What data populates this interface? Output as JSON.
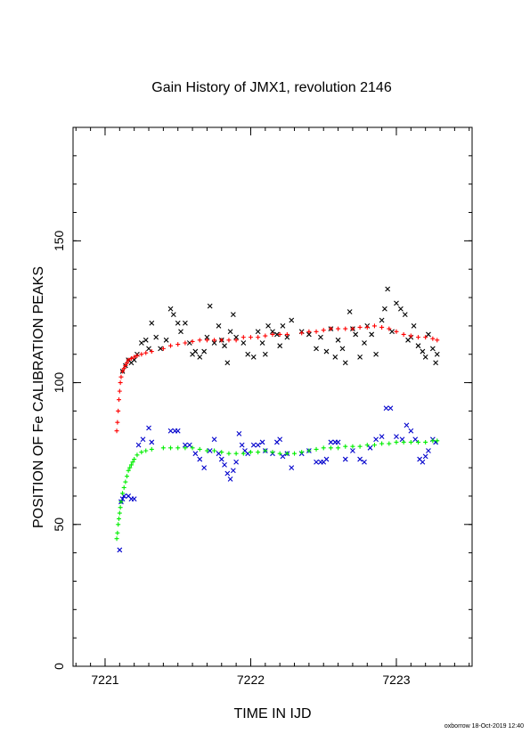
{
  "chart_data": {
    "type": "scatter",
    "title": "Gain History of JMX1, revolution 2146",
    "xlabel": "TIME IN IJD",
    "ylabel": "POSITION OF Fe CALIBRATION PEAKS",
    "xlim": [
      7220.78,
      7223.52
    ],
    "ylim": [
      0,
      190
    ],
    "x_ticks": [
      "7221",
      "7222",
      "7223"
    ],
    "y_ticks": [
      "0",
      "50",
      "100",
      "150"
    ],
    "grid": false,
    "legend": "none",
    "footer": "oxborrow 18-Oct-2019 12:40",
    "series": [
      {
        "marker": "cross",
        "color": "#000000",
        "points": [
          [
            7221.12,
            104
          ],
          [
            7221.14,
            106
          ],
          [
            7221.16,
            108
          ],
          [
            7221.18,
            107
          ],
          [
            7221.2,
            108
          ],
          [
            7221.22,
            110
          ],
          [
            7221.25,
            114
          ],
          [
            7221.28,
            115
          ],
          [
            7221.3,
            112
          ],
          [
            7221.32,
            121
          ],
          [
            7221.35,
            116
          ],
          [
            7221.38,
            112
          ],
          [
            7221.42,
            115
          ],
          [
            7221.45,
            126
          ],
          [
            7221.47,
            124
          ],
          [
            7221.5,
            121
          ],
          [
            7221.52,
            118
          ],
          [
            7221.55,
            121
          ],
          [
            7221.58,
            114
          ],
          [
            7221.6,
            110
          ],
          [
            7221.62,
            111
          ],
          [
            7221.65,
            109
          ],
          [
            7221.68,
            111
          ],
          [
            7221.7,
            116
          ],
          [
            7221.72,
            127
          ],
          [
            7221.75,
            114
          ],
          [
            7221.78,
            120
          ],
          [
            7221.8,
            115
          ],
          [
            7221.82,
            113
          ],
          [
            7221.84,
            107
          ],
          [
            7221.86,
            118
          ],
          [
            7221.88,
            124
          ],
          [
            7221.9,
            116
          ],
          [
            7221.95,
            114
          ],
          [
            7221.98,
            110
          ],
          [
            7222.02,
            109
          ],
          [
            7222.05,
            118
          ],
          [
            7222.08,
            114
          ],
          [
            7222.1,
            110
          ],
          [
            7222.12,
            120
          ],
          [
            7222.15,
            118
          ],
          [
            7222.18,
            117
          ],
          [
            7222.2,
            113
          ],
          [
            7222.22,
            120
          ],
          [
            7222.25,
            116
          ],
          [
            7222.28,
            122
          ],
          [
            7222.35,
            118
          ],
          [
            7222.4,
            117
          ],
          [
            7222.45,
            112
          ],
          [
            7222.48,
            116
          ],
          [
            7222.52,
            111
          ],
          [
            7222.55,
            119
          ],
          [
            7222.58,
            109
          ],
          [
            7222.6,
            115
          ],
          [
            7222.63,
            112
          ],
          [
            7222.65,
            107
          ],
          [
            7222.68,
            125
          ],
          [
            7222.7,
            119
          ],
          [
            7222.72,
            117
          ],
          [
            7222.75,
            109
          ],
          [
            7222.78,
            114
          ],
          [
            7222.8,
            120
          ],
          [
            7222.83,
            117
          ],
          [
            7222.86,
            110
          ],
          [
            7222.9,
            122
          ],
          [
            7222.92,
            126
          ],
          [
            7222.94,
            133
          ],
          [
            7222.97,
            118
          ],
          [
            7223.0,
            128
          ],
          [
            7223.03,
            126
          ],
          [
            7223.06,
            124
          ],
          [
            7223.08,
            115
          ],
          [
            7223.1,
            116
          ],
          [
            7223.12,
            120
          ],
          [
            7223.15,
            113
          ],
          [
            7223.18,
            111
          ],
          [
            7223.2,
            109
          ],
          [
            7223.22,
            117
          ],
          [
            7223.25,
            112
          ],
          [
            7223.27,
            107
          ],
          [
            7223.28,
            110
          ]
        ]
      },
      {
        "marker": "plus",
        "color": "#ff0000",
        "points": [
          [
            7221.08,
            83
          ],
          [
            7221.085,
            86
          ],
          [
            7221.09,
            90
          ],
          [
            7221.095,
            94
          ],
          [
            7221.1,
            97
          ],
          [
            7221.105,
            100
          ],
          [
            7221.11,
            102
          ],
          [
            7221.12,
            104
          ],
          [
            7221.13,
            105
          ],
          [
            7221.14,
            106
          ],
          [
            7221.15,
            107
          ],
          [
            7221.16,
            108
          ],
          [
            7221.18,
            108.5
          ],
          [
            7221.2,
            109
          ],
          [
            7221.22,
            109.5
          ],
          [
            7221.25,
            110
          ],
          [
            7221.28,
            110.5
          ],
          [
            7221.32,
            111
          ],
          [
            7221.4,
            112
          ],
          [
            7221.45,
            113
          ],
          [
            7221.5,
            113.5
          ],
          [
            7221.55,
            114
          ],
          [
            7221.6,
            114.5
          ],
          [
            7221.65,
            115
          ],
          [
            7221.7,
            115
          ],
          [
            7221.75,
            115
          ],
          [
            7221.8,
            115
          ],
          [
            7221.85,
            115
          ],
          [
            7221.9,
            115
          ],
          [
            7221.95,
            116
          ],
          [
            7222.0,
            116
          ],
          [
            7222.05,
            116
          ],
          [
            7222.1,
            116.5
          ],
          [
            7222.15,
            117
          ],
          [
            7222.2,
            117
          ],
          [
            7222.25,
            117
          ],
          [
            7222.35,
            117.5
          ],
          [
            7222.4,
            118
          ],
          [
            7222.45,
            118
          ],
          [
            7222.5,
            118.5
          ],
          [
            7222.55,
            119
          ],
          [
            7222.6,
            119
          ],
          [
            7222.65,
            119
          ],
          [
            7222.7,
            119
          ],
          [
            7222.75,
            119.5
          ],
          [
            7222.8,
            119.5
          ],
          [
            7222.85,
            120
          ],
          [
            7222.9,
            119.5
          ],
          [
            7222.95,
            119
          ],
          [
            7223.0,
            118
          ],
          [
            7223.05,
            117
          ],
          [
            7223.1,
            116.5
          ],
          [
            7223.15,
            116
          ],
          [
            7223.2,
            116
          ],
          [
            7223.25,
            115.5
          ],
          [
            7223.28,
            115
          ]
        ]
      },
      {
        "marker": "cross",
        "color": "#0000cc",
        "points": [
          [
            7221.1,
            41
          ],
          [
            7221.11,
            58
          ],
          [
            7221.12,
            59
          ],
          [
            7221.13,
            60
          ],
          [
            7221.16,
            60
          ],
          [
            7221.18,
            59
          ],
          [
            7221.2,
            59
          ],
          [
            7221.23,
            78
          ],
          [
            7221.26,
            80
          ],
          [
            7221.3,
            84
          ],
          [
            7221.32,
            79
          ],
          [
            7221.45,
            83
          ],
          [
            7221.48,
            83
          ],
          [
            7221.5,
            83
          ],
          [
            7221.55,
            78
          ],
          [
            7221.58,
            78
          ],
          [
            7221.62,
            75
          ],
          [
            7221.65,
            73
          ],
          [
            7221.68,
            70
          ],
          [
            7221.72,
            76
          ],
          [
            7221.75,
            80
          ],
          [
            7221.78,
            75
          ],
          [
            7221.8,
            73
          ],
          [
            7221.82,
            71
          ],
          [
            7221.84,
            68
          ],
          [
            7221.86,
            66
          ],
          [
            7221.88,
            69
          ],
          [
            7221.9,
            72
          ],
          [
            7221.92,
            82
          ],
          [
            7221.94,
            78
          ],
          [
            7221.96,
            76
          ],
          [
            7221.98,
            75
          ],
          [
            7222.02,
            78
          ],
          [
            7222.05,
            78
          ],
          [
            7222.08,
            79
          ],
          [
            7222.1,
            76
          ],
          [
            7222.15,
            75
          ],
          [
            7222.18,
            79
          ],
          [
            7222.2,
            80
          ],
          [
            7222.22,
            74
          ],
          [
            7222.25,
            75
          ],
          [
            7222.28,
            70
          ],
          [
            7222.35,
            75
          ],
          [
            7222.4,
            76
          ],
          [
            7222.45,
            72
          ],
          [
            7222.48,
            72
          ],
          [
            7222.5,
            72
          ],
          [
            7222.52,
            73
          ],
          [
            7222.55,
            79
          ],
          [
            7222.58,
            79
          ],
          [
            7222.6,
            79
          ],
          [
            7222.65,
            73
          ],
          [
            7222.7,
            76
          ],
          [
            7222.75,
            73
          ],
          [
            7222.78,
            72
          ],
          [
            7222.82,
            77
          ],
          [
            7222.86,
            80
          ],
          [
            7222.9,
            81
          ],
          [
            7222.93,
            91
          ],
          [
            7222.96,
            91
          ],
          [
            7223.0,
            81
          ],
          [
            7223.04,
            80
          ],
          [
            7223.07,
            85
          ],
          [
            7223.1,
            83
          ],
          [
            7223.13,
            80
          ],
          [
            7223.16,
            73
          ],
          [
            7223.18,
            72
          ],
          [
            7223.2,
            74
          ],
          [
            7223.22,
            76
          ],
          [
            7223.25,
            80
          ],
          [
            7223.27,
            79
          ]
        ]
      },
      {
        "marker": "plus",
        "color": "#00ee00",
        "points": [
          [
            7221.08,
            45
          ],
          [
            7221.085,
            47
          ],
          [
            7221.09,
            50
          ],
          [
            7221.095,
            52
          ],
          [
            7221.1,
            54
          ],
          [
            7221.105,
            56
          ],
          [
            7221.11,
            58
          ],
          [
            7221.12,
            61
          ],
          [
            7221.13,
            63
          ],
          [
            7221.14,
            65
          ],
          [
            7221.15,
            67
          ],
          [
            7221.16,
            69
          ],
          [
            7221.17,
            70
          ],
          [
            7221.18,
            71
          ],
          [
            7221.19,
            72
          ],
          [
            7221.2,
            73
          ],
          [
            7221.22,
            74.5
          ],
          [
            7221.25,
            75.5
          ],
          [
            7221.28,
            76
          ],
          [
            7221.32,
            76.5
          ],
          [
            7221.4,
            77
          ],
          [
            7221.45,
            77
          ],
          [
            7221.5,
            77
          ],
          [
            7221.55,
            77
          ],
          [
            7221.6,
            77
          ],
          [
            7221.65,
            76.5
          ],
          [
            7221.7,
            76
          ],
          [
            7221.75,
            76
          ],
          [
            7221.8,
            75.5
          ],
          [
            7221.85,
            75
          ],
          [
            7221.9,
            75
          ],
          [
            7221.95,
            75
          ],
          [
            7222.0,
            75.5
          ],
          [
            7222.05,
            75.5
          ],
          [
            7222.1,
            76
          ],
          [
            7222.15,
            75.5
          ],
          [
            7222.2,
            75
          ],
          [
            7222.25,
            75
          ],
          [
            7222.3,
            75
          ],
          [
            7222.35,
            75.5
          ],
          [
            7222.4,
            76
          ],
          [
            7222.45,
            76.5
          ],
          [
            7222.5,
            77
          ],
          [
            7222.55,
            77
          ],
          [
            7222.6,
            77
          ],
          [
            7222.65,
            77.5
          ],
          [
            7222.7,
            77.5
          ],
          [
            7222.75,
            77.5
          ],
          [
            7222.8,
            78
          ],
          [
            7222.85,
            78
          ],
          [
            7222.9,
            78.5
          ],
          [
            7222.95,
            78.5
          ],
          [
            7223.0,
            79
          ],
          [
            7223.05,
            79
          ],
          [
            7223.1,
            79
          ],
          [
            7223.15,
            79
          ],
          [
            7223.2,
            79
          ],
          [
            7223.25,
            79.5
          ],
          [
            7223.28,
            79.5
          ]
        ]
      }
    ]
  }
}
